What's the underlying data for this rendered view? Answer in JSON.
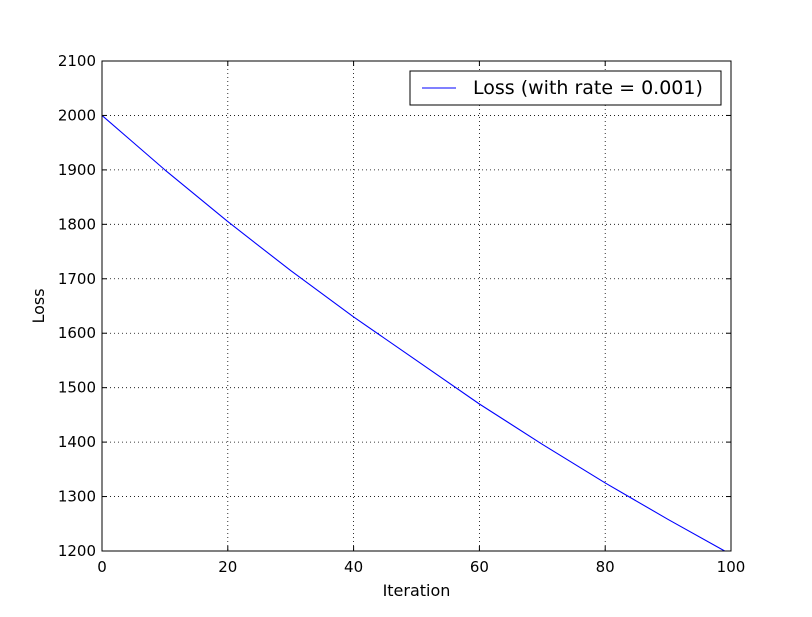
{
  "chart_data": {
    "type": "line",
    "title": "",
    "xlabel": "Iteration",
    "ylabel": "Loss",
    "xlim": [
      0,
      100
    ],
    "ylim": [
      1200,
      2100
    ],
    "xticks": [
      0,
      20,
      40,
      60,
      80,
      100
    ],
    "yticks": [
      1200,
      1300,
      1400,
      1500,
      1600,
      1700,
      1800,
      1900,
      2000,
      2100
    ],
    "grid": true,
    "grid_style": "dotted",
    "legend_position": "top-right",
    "series": [
      {
        "name": "Loss (with rate = 0.001)",
        "color": "#0000ff",
        "x": [
          0,
          10,
          20,
          30,
          40,
          50,
          60,
          70,
          80,
          90,
          99
        ],
        "y": [
          2000,
          1900,
          1805,
          1715,
          1630,
          1550,
          1470,
          1396,
          1325,
          1258,
          1200
        ]
      }
    ]
  }
}
